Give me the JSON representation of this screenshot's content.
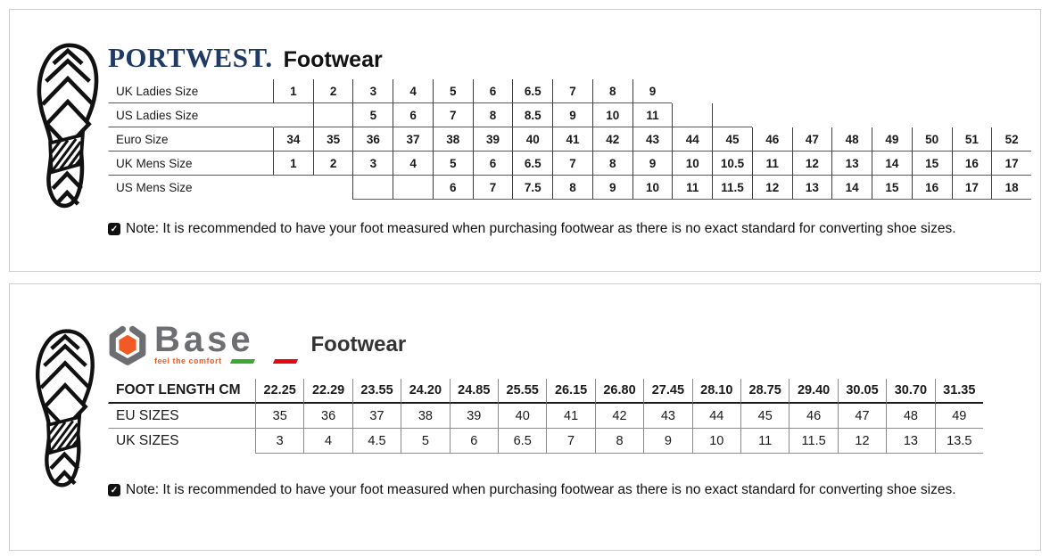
{
  "portwest": {
    "brand": "PORTWEST.",
    "product": "Footwear",
    "brand_color": "#203a66",
    "note": "Note: It is recommended to have your foot measured when purchasing footwear as there is no exact standard for converting shoe sizes.",
    "table": {
      "columns": 19,
      "rows": [
        {
          "label": "UK Ladies Size",
          "label_bottom": true,
          "cells": [
            "1",
            "2",
            "3",
            "4",
            "5",
            "6",
            "6.5",
            "7",
            "8",
            "9",
            null,
            null,
            null,
            null,
            null,
            null,
            null,
            null,
            null
          ]
        },
        {
          "label": "US Ladies Size",
          "label_bottom": true,
          "no_left_on_first": true,
          "cells": [
            "",
            "",
            "5",
            "6",
            "7",
            "8",
            "8.5",
            "9",
            "10",
            "11",
            "",
            "",
            null,
            null,
            null,
            null,
            null,
            null,
            null
          ]
        },
        {
          "label": "Euro Size",
          "label_bottom": true,
          "cells": [
            "34",
            "35",
            "36",
            "37",
            "38",
            "39",
            "40",
            "41",
            "42",
            "43",
            "44",
            "45",
            "46",
            "47",
            "48",
            "49",
            "50",
            "51",
            "52"
          ]
        },
        {
          "label": "UK Mens Size",
          "label_bottom": true,
          "cells": [
            "1",
            "2",
            "3",
            "4",
            "5",
            "6",
            "6.5",
            "7",
            "8",
            "9",
            "10",
            "10.5",
            "11",
            "12",
            "13",
            "14",
            "15",
            "16",
            "17"
          ]
        },
        {
          "label": "US Mens Size",
          "label_bottom": false,
          "cells": [
            null,
            null,
            "",
            "",
            "6",
            "7",
            "7.5",
            "8",
            "9",
            "10",
            "11",
            "11.5",
            "12",
            "13",
            "14",
            "15",
            "16",
            "17",
            "18"
          ]
        }
      ]
    }
  },
  "base": {
    "brand": "Base",
    "tagline": "feel the comfort",
    "product": "Footwear",
    "brand_colors": {
      "gray": "#6d6e71",
      "orange": "#f15a24",
      "green": "#3aaa35",
      "red": "#e30613"
    },
    "note": "Note: It is recommended to have your foot measured when purchasing footwear as there is no exact standard for converting shoe sizes.",
    "table": {
      "columns": 15,
      "rows": [
        {
          "label": "FOOT LENGTH CM",
          "bold": true,
          "heavy_bottom": true,
          "label_bottom": true,
          "cells": [
            "22.25",
            "22.29",
            "23.55",
            "24.20",
            "24.85",
            "25.55",
            "26.15",
            "26.80",
            "27.45",
            "28.10",
            "28.75",
            "29.40",
            "30.05",
            "30.70",
            "31.35"
          ]
        },
        {
          "label": "EU SIZES",
          "label_bottom": true,
          "cells": [
            "35",
            "36",
            "37",
            "38",
            "39",
            "40",
            "41",
            "42",
            "43",
            "44",
            "45",
            "46",
            "47",
            "48",
            "49"
          ]
        },
        {
          "label": "UK SIZES",
          "label_bottom": false,
          "cells": [
            "3",
            "4",
            "4.5",
            "5",
            "6",
            "6.5",
            "7",
            "8",
            "9",
            "10",
            "11",
            "11.5",
            "12",
            "13",
            "13.5"
          ]
        }
      ]
    }
  },
  "icons": {
    "note_check": "✓",
    "footprint": "footprint-icon",
    "base_nut": "base-nut-icon"
  }
}
